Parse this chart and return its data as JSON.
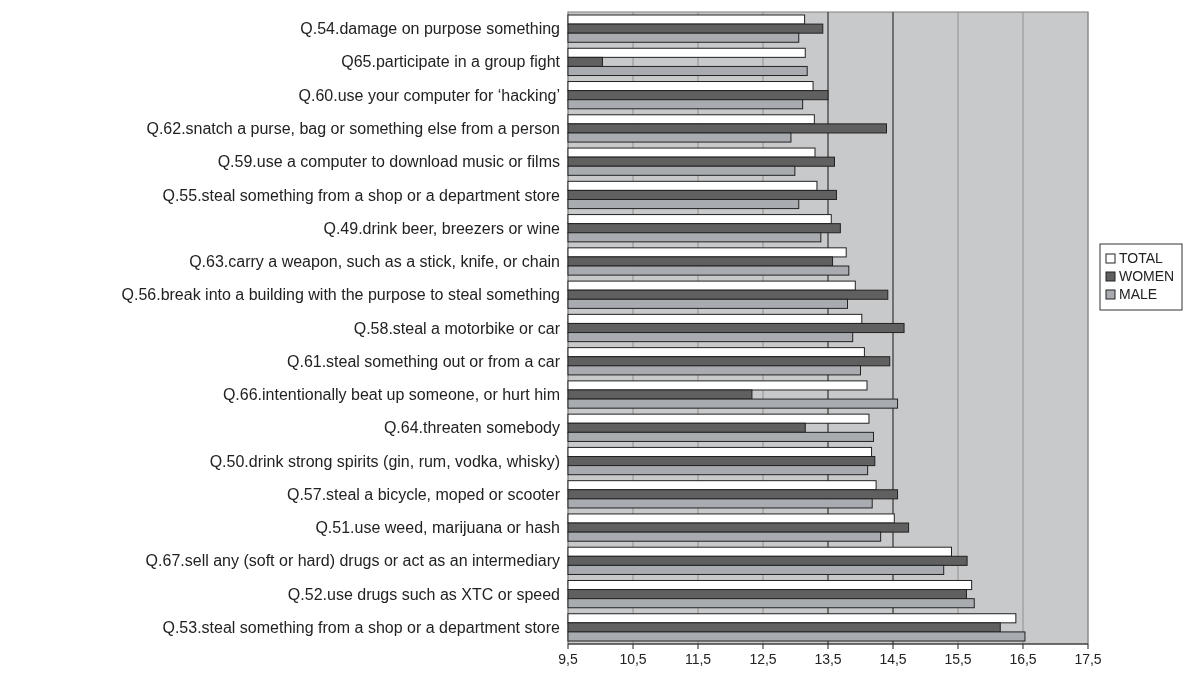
{
  "chart_data": {
    "type": "bar",
    "orientation": "horizontal",
    "categories": [
      "Q.54.damage on purpose something",
      "Q65.participate in a group fight",
      "Q.60.use your computer for ‘hacking’",
      "Q.62.snatch a purse, bag or something else from a person",
      "Q.59.use a computer to download music or films",
      "Q.55.steal something from a shop or a department store",
      "Q.49.drink beer, breezers or wine",
      "Q.63.carry a weapon, such as a stick, knife, or chain",
      "Q.56.break into a building with the purpose to steal something",
      "Q.58.steal a motorbike or car",
      "Q.61.steal something out or from a car",
      "Q.66.intentionally beat up someone, or hurt him",
      "Q.64.threaten somebody",
      "Q.50.drink strong spirits (gin, rum, vodka, whisky)",
      "Q.57.steal a bicycle, moped or scooter",
      "Q.51.use weed, marijuana or hash",
      "Q.67.sell any (soft or hard) drugs or act as an intermediary",
      "Q.52.use drugs such as XTC or speed",
      "Q.53.steal something from a shop or a department store"
    ],
    "series": [
      {
        "name": "TOTAL",
        "color": "#ffffff",
        "values": [
          13.14,
          13.15,
          13.27,
          13.29,
          13.3,
          13.33,
          13.55,
          13.78,
          13.92,
          14.02,
          14.06,
          14.1,
          14.13,
          14.17,
          14.24,
          14.52,
          15.4,
          15.71,
          16.39
        ]
      },
      {
        "name": "WOMEN",
        "color": "#606060",
        "values": [
          13.42,
          10.03,
          13.5,
          14.4,
          13.6,
          13.63,
          13.69,
          13.57,
          14.42,
          14.67,
          14.45,
          12.33,
          13.15,
          14.22,
          14.57,
          14.74,
          15.64,
          15.63,
          16.15
        ]
      },
      {
        "name": "MALE",
        "color": "#a8acb0",
        "values": [
          13.05,
          13.18,
          13.11,
          12.93,
          12.99,
          13.05,
          13.39,
          13.82,
          13.8,
          13.88,
          14,
          14.57,
          14.2,
          14.11,
          14.18,
          14.31,
          15.28,
          15.75,
          16.53
        ]
      }
    ],
    "xlim": [
      9.5,
      17.5
    ],
    "xticks": [
      {
        "value": 9.5,
        "label": "9,5"
      },
      {
        "value": 10.5,
        "label": "10,5"
      },
      {
        "value": 11.5,
        "label": "11,5"
      },
      {
        "value": 12.5,
        "label": "12,5"
      },
      {
        "value": 13.5,
        "label": "13,5"
      },
      {
        "value": 14.5,
        "label": "14,5"
      },
      {
        "value": 15.5,
        "label": "15,5"
      },
      {
        "value": 16.5,
        "label": "16,5"
      },
      {
        "value": 17.5,
        "label": "17,5"
      }
    ],
    "grid": "x",
    "legend": "right"
  }
}
